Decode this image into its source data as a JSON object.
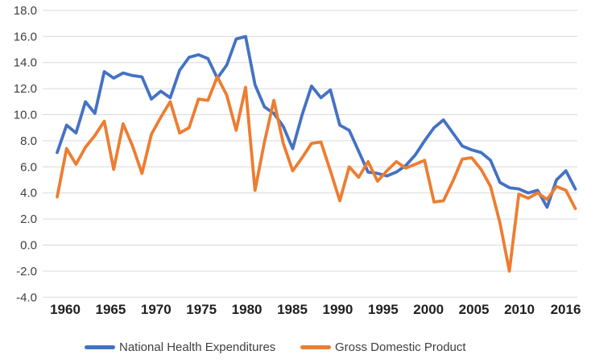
{
  "chart_data": {
    "type": "line",
    "title": "",
    "xlabel": "",
    "ylabel": "",
    "x": [
      1961,
      1962,
      1963,
      1964,
      1965,
      1966,
      1967,
      1968,
      1969,
      1970,
      1971,
      1972,
      1973,
      1974,
      1975,
      1976,
      1977,
      1978,
      1979,
      1980,
      1981,
      1982,
      1983,
      1984,
      1985,
      1986,
      1987,
      1988,
      1989,
      1990,
      1991,
      1992,
      1993,
      1994,
      1995,
      1996,
      1997,
      1998,
      1999,
      2000,
      2001,
      2002,
      2003,
      2004,
      2005,
      2006,
      2007,
      2008,
      2009,
      2010,
      2011,
      2012,
      2013,
      2014,
      2015,
      2016
    ],
    "series": [
      {
        "name": "National Health Expenditures",
        "color": "#4472C4",
        "values": [
          7.1,
          9.2,
          8.6,
          11.0,
          10.1,
          13.3,
          12.8,
          13.2,
          13.0,
          12.9,
          11.2,
          11.8,
          11.3,
          13.4,
          14.4,
          14.6,
          14.3,
          12.8,
          13.8,
          15.8,
          16.0,
          12.3,
          10.6,
          10.1,
          9.1,
          7.4,
          10.0,
          12.2,
          11.3,
          11.9,
          9.2,
          8.8,
          7.2,
          5.6,
          5.5,
          5.3,
          5.6,
          6.1,
          6.9,
          8.0,
          9.0,
          9.6,
          8.6,
          7.6,
          7.3,
          7.1,
          6.5,
          4.8,
          4.4,
          4.3,
          4.0,
          4.2,
          2.9,
          5.0,
          5.7,
          4.3
        ]
      },
      {
        "name": "Gross Domestic Product",
        "color": "#ED7D31",
        "values": [
          3.7,
          7.4,
          6.2,
          7.5,
          8.4,
          9.5,
          5.8,
          9.3,
          7.6,
          5.5,
          8.5,
          9.8,
          11.0,
          8.6,
          9.0,
          11.2,
          11.1,
          12.9,
          11.5,
          8.8,
          12.1,
          4.2,
          7.9,
          11.1,
          7.8,
          5.7,
          6.7,
          7.8,
          7.9,
          5.7,
          3.4,
          6.0,
          5.2,
          6.4,
          4.9,
          5.7,
          6.4,
          5.9,
          6.2,
          6.5,
          3.3,
          3.4,
          4.9,
          6.6,
          6.7,
          5.8,
          4.5,
          1.7,
          -2.0,
          3.9,
          3.6,
          4.0,
          3.5,
          4.5,
          4.2,
          2.8
        ]
      }
    ],
    "y_axis": {
      "min": -4,
      "max": 18,
      "step": 2,
      "tick_labels": [
        "18.0",
        "16.0",
        "14.0",
        "12.0",
        "10.0",
        "8.0",
        "6.0",
        "4.0",
        "2.0",
        "0.0",
        "-2.0",
        "-4.0"
      ]
    },
    "x_axis": {
      "tick_labels": [
        "1960",
        "1965",
        "1970",
        "1975",
        "1980",
        "1985",
        "1990",
        "1995",
        "2000",
        "2005",
        "2010",
        "2016"
      ]
    },
    "grid": true,
    "legend_position": "bottom",
    "colors": {
      "gridline": "#D9D9D9",
      "y_tick_text": "#3f3f3f",
      "x_tick_text": "#1f1f1f",
      "legend_text": "#404040",
      "background": "#ffffff"
    }
  },
  "legend": {
    "items": [
      {
        "label": "National Health Expenditures",
        "swatch_color": "#4472C4"
      },
      {
        "label": "Gross Domestic Product",
        "swatch_color": "#ED7D31"
      }
    ]
  }
}
